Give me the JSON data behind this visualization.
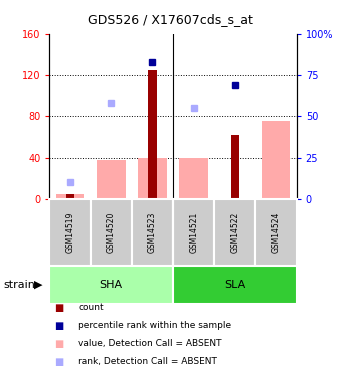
{
  "title": "GDS526 / X17607cds_s_at",
  "samples": [
    "GSM14519",
    "GSM14520",
    "GSM14523",
    "GSM14521",
    "GSM14522",
    "GSM14524"
  ],
  "count_values": [
    5,
    0,
    125,
    0,
    62,
    0
  ],
  "rank_values": [
    null,
    null,
    83,
    null,
    69,
    null
  ],
  "absent_value_values": [
    5,
    38,
    40,
    40,
    null,
    75
  ],
  "absent_rank_values": [
    10,
    58,
    null,
    55,
    null,
    null
  ],
  "ylim_left": [
    0,
    160
  ],
  "ylim_right": [
    0,
    100
  ],
  "yticks_left": [
    0,
    40,
    80,
    120,
    160
  ],
  "yticks_right": [
    0,
    25,
    50,
    75,
    100
  ],
  "ytick_labels_left": [
    "0",
    "40",
    "80",
    "120",
    "160"
  ],
  "ytick_labels_right": [
    "0",
    "25",
    "50",
    "75",
    "100%"
  ],
  "color_count": "#990000",
  "color_rank": "#000099",
  "color_absent_value": "#ffaaaa",
  "color_absent_rank": "#aaaaff",
  "color_sha_bg": "#aaffaa",
  "color_sla_bg": "#33cc33",
  "color_sample_bg": "#cccccc",
  "legend_items": [
    "count",
    "percentile rank within the sample",
    "value, Detection Call = ABSENT",
    "rank, Detection Call = ABSENT"
  ],
  "sha_samples": [
    0,
    1,
    2
  ],
  "sla_samples": [
    3,
    4,
    5
  ]
}
